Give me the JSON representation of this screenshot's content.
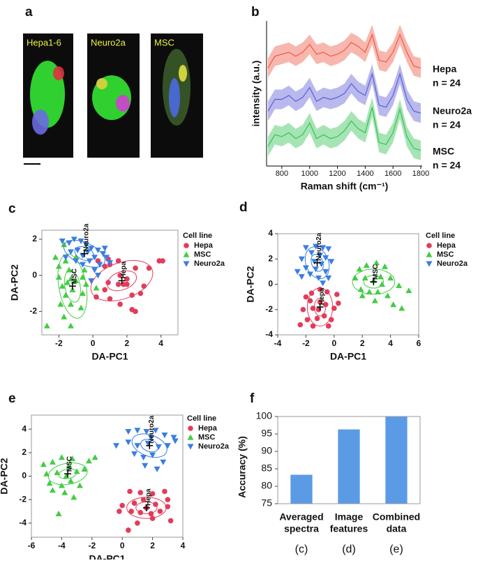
{
  "chart_data": [
    {
      "type": "micrograph",
      "panel": "a",
      "images": [
        "Hepa1-6",
        "Neuro2a",
        "MSC"
      ]
    },
    {
      "type": "line",
      "panel": "b",
      "xlabel": "Raman shift (cm⁻¹)",
      "ylabel": "intensity (a.u.)",
      "x": [
        700,
        750,
        800,
        850,
        900,
        950,
        1000,
        1050,
        1100,
        1150,
        1200,
        1250,
        1300,
        1350,
        1400,
        1450,
        1500,
        1550,
        1600,
        1650,
        1700,
        1750,
        1800
      ],
      "xlim": [
        690,
        1810
      ],
      "xticks": [
        800,
        1000,
        1200,
        1400,
        1600,
        1800
      ],
      "ylim": [
        1.2,
        8.6
      ],
      "series": [
        {
          "name": "Hepa",
          "note": "n = 24",
          "color": "#f0604c",
          "spread": 0.5,
          "values": [
            6.2,
            6.8,
            6.9,
            7.0,
            6.8,
            7.0,
            7.4,
            6.9,
            7.0,
            6.8,
            6.9,
            7.1,
            7.5,
            7.3,
            7.0,
            7.9,
            6.6,
            6.5,
            7.0,
            7.9,
            7.0,
            6.3,
            6.2
          ]
        },
        {
          "name": "Neuro2a",
          "note": "n = 24",
          "color": "#6464d8",
          "spread": 0.5,
          "values": [
            4.0,
            4.6,
            4.6,
            4.8,
            4.5,
            4.7,
            5.2,
            4.5,
            4.7,
            4.6,
            4.7,
            4.9,
            5.4,
            5.0,
            4.8,
            5.9,
            4.3,
            4.2,
            4.8,
            5.9,
            4.6,
            4.0,
            3.9
          ]
        },
        {
          "name": "MSC",
          "note": "n = 24",
          "color": "#3cc45a",
          "spread": 0.5,
          "values": [
            2.2,
            2.8,
            2.7,
            2.9,
            2.6,
            2.8,
            3.4,
            2.6,
            2.8,
            2.6,
            2.7,
            3.0,
            3.5,
            3.1,
            2.9,
            4.2,
            2.4,
            2.3,
            2.9,
            4.1,
            2.7,
            2.1,
            2.0
          ]
        }
      ]
    },
    {
      "type": "scatter",
      "panel": "c",
      "xlabel": "DA-PC1",
      "ylabel": "DA-PC2",
      "legend_title": "Cell line",
      "xlim": [
        -3,
        5
      ],
      "xticks": [
        -2,
        0,
        2,
        4
      ],
      "ylim": [
        -3.3,
        2.5
      ],
      "yticks": [
        -2,
        0,
        2
      ],
      "series": [
        {
          "name": "Hepa",
          "color": "#e23c5a",
          "marker": "circle",
          "x": [
            0.3,
            0.7,
            1.0,
            0.9,
            1.5,
            1.8,
            2.0,
            1.6,
            2.5,
            3.3,
            3.9,
            4.1,
            2.3,
            1.0,
            0.2,
            0.7,
            2.8,
            2.3,
            2.5,
            1.6,
            2.0,
            1.5,
            3.0,
            0.9
          ],
          "values": [
            0.8,
            0.5,
            0.6,
            -0.4,
            -0.5,
            -0.5,
            -0.2,
            0.0,
            0.4,
            0.4,
            0.8,
            0.8,
            -1.1,
            -1.3,
            -1.2,
            -0.8,
            -1.0,
            -1.9,
            -2.0,
            -1.6,
            -0.5,
            0.8,
            -0.6,
            0.9
          ],
          "ellipse_center": [
            1.7,
            -0.3
          ],
          "ellipse_angle": 20,
          "ellipse_radii": [
            [
              0.9,
              0.5
            ],
            [
              1.9,
              1.0
            ]
          ]
        },
        {
          "name": "MSC",
          "color": "#44cc44",
          "marker": "triangle-up",
          "x": [
            -1.7,
            -2.2,
            -1.6,
            -2.0,
            -1.5,
            -1.3,
            -1.0,
            -0.6,
            -1.2,
            -1.6,
            -1.9,
            -1.3,
            -0.6,
            -0.5,
            -1.7,
            -2.7,
            -1.3,
            -0.7,
            -0.4,
            -1.4,
            -2.0,
            -1.0,
            0.2,
            -1.8
          ],
          "values": [
            1.7,
            1.0,
            0.8,
            -0.1,
            -0.4,
            -0.2,
            -0.3,
            -0.1,
            -0.8,
            -1.1,
            -1.6,
            -1.6,
            -1.0,
            0.3,
            -2.3,
            -2.8,
            -2.8,
            -1.8,
            -0.5,
            0.3,
            0.5,
            1.0,
            -0.7,
            -0.6
          ],
          "ellipse_center": [
            -1.2,
            -0.6
          ],
          "ellipse_angle": 10,
          "ellipse_radii": [
            [
              0.45,
              0.9
            ],
            [
              0.8,
              1.8
            ]
          ]
        },
        {
          "name": "Neuro2a",
          "color": "#3a7ee0",
          "marker": "triangle-down",
          "x": [
            -1.8,
            -1.4,
            -1.1,
            -0.7,
            -0.4,
            -0.1,
            0.3,
            0.6,
            0.8,
            1.0,
            -1.3,
            -0.9,
            -0.6,
            -0.3,
            0.1,
            0.4,
            -1.0,
            0.1,
            -0.1,
            0.3,
            -0.6,
            -1.6,
            0.7,
            -0.2
          ],
          "values": [
            1.9,
            1.8,
            2.0,
            1.9,
            1.7,
            1.5,
            1.4,
            1.2,
            1.0,
            0.7,
            1.3,
            1.4,
            1.1,
            1.3,
            1.0,
            0.6,
            0.8,
            0.3,
            -0.3,
            0.0,
            0.6,
            1.0,
            1.5,
            0.8
          ],
          "ellipse_center": [
            -0.5,
            1.2
          ],
          "ellipse_angle": -25,
          "ellipse_radii": [
            [
              0.6,
              0.35
            ],
            [
              1.3,
              0.6
            ]
          ]
        }
      ]
    },
    {
      "type": "scatter",
      "panel": "d",
      "xlabel": "DA-PC1",
      "ylabel": "DA-PC2",
      "legend_title": "Cell line",
      "xlim": [
        -4,
        6
      ],
      "xticks": [
        -4,
        -2,
        0,
        2,
        4,
        6
      ],
      "ylim": [
        -4,
        4
      ],
      "yticks": [
        -4,
        -2,
        0,
        2,
        4
      ],
      "series": [
        {
          "name": "Hepa",
          "color": "#e23c5a",
          "marker": "circle",
          "x": [
            -2.0,
            -1.6,
            -1.0,
            -0.5,
            0.2,
            -2.2,
            -1.5,
            -1.1,
            -0.6,
            0.0,
            0.3,
            -1.9,
            -1.2,
            -0.7,
            -0.2,
            -2.4,
            -1.5,
            -0.4,
            -1.0,
            -1.7
          ],
          "values": [
            -1.0,
            -0.7,
            -0.4,
            -0.6,
            -0.8,
            -2.0,
            -1.9,
            -2.0,
            -1.6,
            -1.9,
            -1.5,
            -2.8,
            -2.7,
            -2.5,
            -2.8,
            -3.2,
            -3.3,
            -3.3,
            -1.4,
            -1.3
          ],
          "ellipse_center": [
            -1.0,
            -1.8
          ],
          "ellipse_angle": 0,
          "ellipse_radii": [
            [
              0.4,
              0.7
            ],
            [
              0.9,
              1.5
            ]
          ]
        },
        {
          "name": "MSC",
          "color": "#44cc44",
          "marker": "triangle-up",
          "x": [
            1.8,
            2.3,
            3.0,
            3.6,
            1.5,
            2.2,
            2.8,
            3.3,
            4.0,
            4.6,
            5.3,
            1.9,
            2.5,
            3.1,
            3.8,
            2.9,
            4.2,
            4.8,
            2.0,
            3.4
          ],
          "values": [
            1.2,
            1.5,
            1.7,
            1.4,
            0.5,
            0.5,
            0.3,
            0.6,
            0.5,
            -0.1,
            -0.5,
            -0.4,
            -0.6,
            -0.6,
            -0.9,
            -1.3,
            -1.6,
            -1.9,
            -0.9,
            0.0
          ],
          "ellipse_center": [
            2.8,
            0.2
          ],
          "ellipse_angle": 0,
          "ellipse_radii": [
            [
              0.7,
              0.5
            ],
            [
              1.5,
              1.0
            ]
          ]
        },
        {
          "name": "Neuro2a",
          "color": "#3a7ee0",
          "marker": "triangle-down",
          "x": [
            -2.0,
            -1.3,
            -0.8,
            -0.4,
            -1.6,
            -1.0,
            -0.6,
            -2.3,
            -1.4,
            -0.9,
            -0.2,
            -2.0,
            -1.3,
            -0.6,
            -1.7,
            -1.1,
            -2.3,
            -0.4,
            -0.8,
            -2.6
          ],
          "values": [
            2.9,
            3.0,
            2.9,
            2.8,
            2.5,
            2.3,
            2.1,
            2.0,
            1.8,
            1.6,
            1.8,
            1.3,
            1.2,
            1.0,
            0.8,
            0.5,
            0.6,
            0.5,
            0.1,
            1.0
          ],
          "ellipse_center": [
            -1.2,
            1.7
          ],
          "ellipse_angle": 20,
          "ellipse_radii": [
            [
              0.4,
              0.7
            ],
            [
              0.8,
              1.3
            ]
          ]
        }
      ]
    },
    {
      "type": "scatter",
      "panel": "e",
      "xlabel": "DA-PC1",
      "ylabel": "DA-PC2",
      "legend_title": "Cell line",
      "xlim": [
        -6,
        4
      ],
      "xticks": [
        -6,
        -4,
        -2,
        0,
        2,
        4
      ],
      "ylim": [
        -5.2,
        5.2
      ],
      "yticks": [
        -4,
        -2,
        0,
        2,
        4
      ],
      "series": [
        {
          "name": "Hepa",
          "color": "#e23c5a",
          "marker": "circle",
          "x": [
            0.5,
            1.2,
            2.0,
            2.8,
            0.0,
            0.8,
            1.4,
            2.2,
            3.0,
            -0.2,
            0.6,
            1.2,
            1.9,
            2.5,
            3.2,
            1.0,
            0.4,
            2.0,
            1.6,
            3.0
          ],
          "values": [
            -1.3,
            -1.4,
            -1.5,
            -1.3,
            -2.5,
            -2.3,
            -2.0,
            -2.4,
            -2.6,
            -3.0,
            -3.0,
            -3.1,
            -3.2,
            -3.0,
            -3.8,
            -4.0,
            -4.6,
            -3.6,
            -2.7,
            -2.0
          ],
          "ellipse_center": [
            1.6,
            -2.7
          ],
          "ellipse_angle": 0,
          "ellipse_radii": [
            [
              0.7,
              0.5
            ],
            [
              1.3,
              0.9
            ]
          ]
        },
        {
          "name": "MSC",
          "color": "#44cc44",
          "marker": "triangle-up",
          "x": [
            -5.2,
            -4.6,
            -4.0,
            -3.3,
            -2.2,
            -1.8,
            -5.0,
            -4.3,
            -3.7,
            -3.0,
            -2.5,
            -4.8,
            -4.0,
            -3.4,
            -2.8,
            -3.8,
            -3.2,
            -4.6,
            -4.2,
            -3.5
          ],
          "values": [
            1.0,
            1.2,
            1.6,
            1.5,
            1.3,
            1.6,
            0.2,
            0.3,
            0.0,
            0.4,
            0.6,
            -0.6,
            -0.8,
            -0.4,
            -0.8,
            -1.4,
            -1.8,
            -1.2,
            -3.2,
            0.8
          ],
          "ellipse_center": [
            -3.6,
            0.2
          ],
          "ellipse_angle": 10,
          "ellipse_radii": [
            [
              0.6,
              0.4
            ],
            [
              1.3,
              0.9
            ]
          ]
        },
        {
          "name": "Neuro2a",
          "color": "#3a7ee0",
          "marker": "triangle-down",
          "x": [
            0.4,
            1.0,
            1.6,
            2.2,
            2.8,
            3.4,
            -0.4,
            0.4,
            1.0,
            1.7,
            2.4,
            3.0,
            0.8,
            1.4,
            2.0,
            2.7,
            1.5,
            2.3,
            3.5,
            1.9
          ],
          "values": [
            3.8,
            3.9,
            3.8,
            3.9,
            3.5,
            3.3,
            2.6,
            2.9,
            2.6,
            2.8,
            2.5,
            2.6,
            1.9,
            1.6,
            1.8,
            1.2,
            0.9,
            0.6,
            3.0,
            3.3
          ],
          "ellipse_center": [
            1.8,
            2.6
          ],
          "ellipse_angle": -20,
          "ellipse_radii": [
            [
              0.6,
              0.5
            ],
            [
              1.2,
              0.9
            ]
          ]
        }
      ]
    },
    {
      "type": "bar",
      "panel": "f",
      "ylabel": "Accuracy (%)",
      "categories": [
        [
          "Averaged",
          "spectra"
        ],
        [
          "Image",
          "features"
        ],
        [
          "Combined",
          "data"
        ]
      ],
      "sublabels": [
        "(c)",
        "(d)",
        "(e)"
      ],
      "values": [
        83.3,
        96.3,
        100
      ],
      "color": "#5b9be6",
      "ylim": [
        75,
        100
      ],
      "yticks": [
        75,
        80,
        85,
        90,
        95,
        100
      ]
    }
  ]
}
